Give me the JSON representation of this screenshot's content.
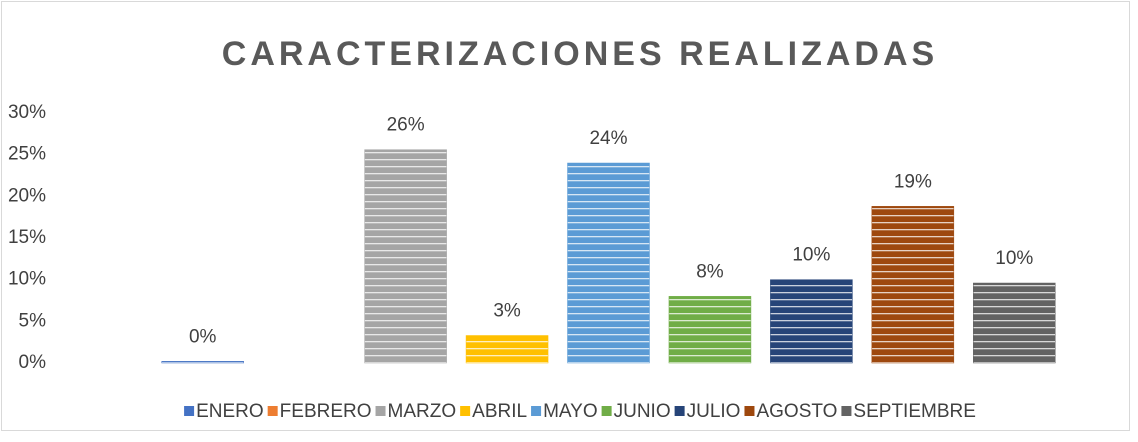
{
  "chart_data": {
    "type": "bar",
    "title": "CARACTERIZACIONES REALIZADAS",
    "categories": [
      "ENERO",
      "FEBRERO",
      "MARZO",
      "ABRIL",
      "MAYO",
      "JUNIO",
      "JULIO",
      "AGOSTO",
      "SEPTIEMBRE"
    ],
    "values": [
      0.2,
      null,
      25.6,
      3.3,
      24,
      8,
      10,
      18.8,
      9.6
    ],
    "value_labels": [
      "0%",
      null,
      "26%",
      "3%",
      "24%",
      "8%",
      "10%",
      "19%",
      "10%"
    ],
    "colors": [
      "#4472c4",
      "#ed7d31",
      "#a5a5a5",
      "#ffc000",
      "#5b9bd5",
      "#70ad47",
      "#264478",
      "#9e480e",
      "#636363"
    ],
    "ylim": [
      0,
      30
    ],
    "yticks": [
      {
        "value": 0,
        "label": "0%"
      },
      {
        "value": 5,
        "label": "5%"
      },
      {
        "value": 10,
        "label": "10%"
      },
      {
        "value": 15,
        "label": "15%"
      },
      {
        "value": 20,
        "label": "20%"
      },
      {
        "value": 25,
        "label": "25%"
      },
      {
        "value": 30,
        "label": "30%"
      }
    ],
    "grid": false,
    "legend": "bottom"
  }
}
